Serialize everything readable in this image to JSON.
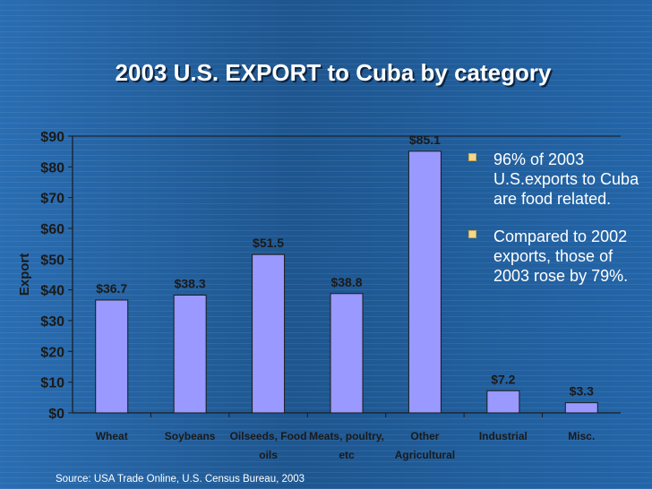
{
  "chart_data": {
    "type": "bar",
    "title": "2003 U.S. EXPORT to Cuba by category",
    "xlabel": "",
    "ylabel": "Export",
    "ylim": [
      0,
      90
    ],
    "yticks": [
      "$0",
      "$10",
      "$20",
      "$30",
      "$40",
      "$50",
      "$60",
      "$70",
      "$80",
      "$90"
    ],
    "categories": [
      [
        "Wheat"
      ],
      [
        "Soybeans"
      ],
      [
        "Oilseeds, Food",
        "oils"
      ],
      [
        "Meats, poultry,",
        "etc"
      ],
      [
        "Other",
        "Agricultural"
      ],
      [
        "Industrial"
      ],
      [
        "Misc."
      ]
    ],
    "values": [
      36.7,
      38.3,
      51.5,
      38.8,
      85.1,
      7.2,
      3.3
    ],
    "data_labels": [
      "$36.7",
      "$38.3",
      "$51.5",
      "$38.8",
      "$85.1",
      "$7.2",
      "$3.3"
    ],
    "colors": {
      "bar": "#9999ff",
      "bar_stroke": "#1a1a1a",
      "text": "#1a1a1a",
      "grid": "#1a1a1a"
    }
  },
  "bullets": [
    "96% of 2003 U.S.exports to Cuba are food related.",
    "Compared to 2002 exports, those of 2003 rose by 79%."
  ],
  "source": "Source: USA Trade Online, U.S. Census Bureau, 2003"
}
